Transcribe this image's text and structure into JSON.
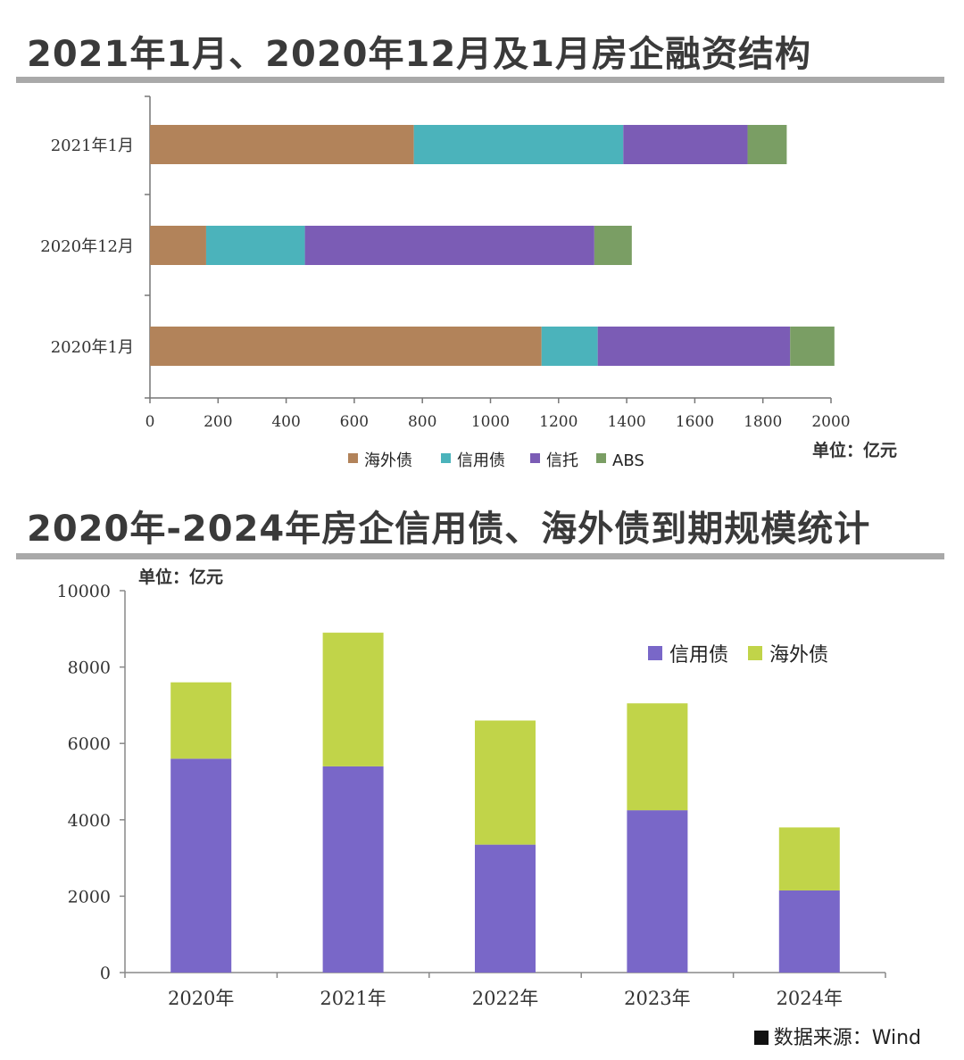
{
  "chart_data": [
    {
      "type": "bar",
      "orientation": "horizontal",
      "stacked": true,
      "title": "2021年1月、2020年12月及1月房企融资结构",
      "unit_label": "单位：亿元",
      "categories": [
        "2021年1月",
        "2020年12月",
        "2020年1月"
      ],
      "series": [
        {
          "name": "海外债",
          "color": "#b2835a",
          "values": [
            775,
            165,
            1150
          ]
        },
        {
          "name": "信用债",
          "color": "#4bb3bb",
          "values": [
            615,
            290,
            165
          ]
        },
        {
          "name": "信托",
          "color": "#7b5cb5",
          "values": [
            365,
            850,
            565
          ]
        },
        {
          "name": "ABS",
          "color": "#7a9e64",
          "values": [
            115,
            110,
            130
          ]
        }
      ],
      "xlim": [
        0,
        2000
      ],
      "xticks": [
        "0",
        "200",
        "400",
        "600",
        "800",
        "1000",
        "1200",
        "1400",
        "1600",
        "1800",
        "2000"
      ],
      "legend_position": "bottom"
    },
    {
      "type": "bar",
      "orientation": "vertical",
      "stacked": true,
      "title": "2020年-2024年房企信用债、海外债到期规模统计",
      "unit_label": "单位：亿元",
      "categories": [
        "2020年",
        "2021年",
        "2022年",
        "2023年",
        "2024年"
      ],
      "series": [
        {
          "name": "信用债",
          "color": "#7967c8",
          "values": [
            5600,
            5400,
            3350,
            4250,
            2150
          ]
        },
        {
          "name": "海外债",
          "color": "#c1d449",
          "values": [
            2000,
            3500,
            3250,
            2800,
            1650
          ]
        }
      ],
      "ylim": [
        0,
        10000
      ],
      "yticks": [
        "0",
        "2000",
        "4000",
        "6000",
        "8000",
        "10000"
      ],
      "legend_position": "top-right"
    }
  ],
  "source_note": "数据来源：Wind"
}
